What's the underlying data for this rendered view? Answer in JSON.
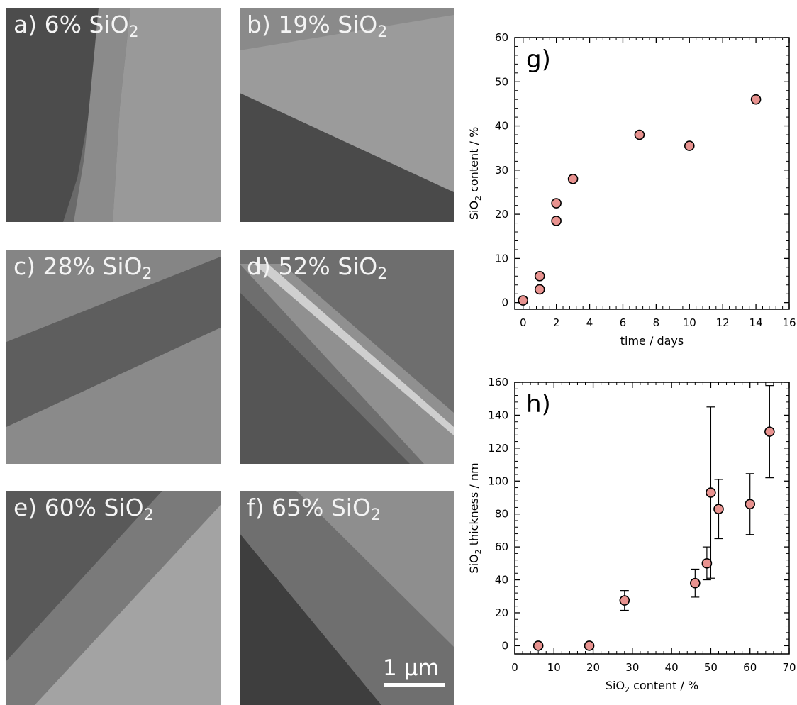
{
  "panels": [
    {
      "letter": "a)",
      "percent": "6%",
      "compound": "SiO",
      "sub": "2"
    },
    {
      "letter": "b)",
      "percent": "19%",
      "compound": "SiO",
      "sub": "2"
    },
    {
      "letter": "c)",
      "percent": "28%",
      "compound": "SiO",
      "sub": "2"
    },
    {
      "letter": "d)",
      "percent": "52%",
      "compound": "SiO",
      "sub": "2"
    },
    {
      "letter": "e)",
      "percent": "60%",
      "compound": "SiO",
      "sub": "2"
    },
    {
      "letter": "f)",
      "percent": "65%",
      "compound": "SiO",
      "sub": "2"
    }
  ],
  "scalebar": {
    "label": "1 µm"
  },
  "chart_data": [
    {
      "type": "scatter",
      "panel_label": "g)",
      "xlabel": "time / days",
      "ylabel_main": "SiO",
      "ylabel_sub": "2",
      "ylabel_rest": " content / %",
      "xlim": [
        -0.5,
        16
      ],
      "ylim": [
        -1.5,
        60
      ],
      "xticks": [
        0,
        2,
        4,
        6,
        8,
        10,
        12,
        14,
        16
      ],
      "yticks": [
        0,
        10,
        20,
        30,
        40,
        50,
        60
      ],
      "points": [
        {
          "x": 0,
          "y": 0.5
        },
        {
          "x": 1,
          "y": 3
        },
        {
          "x": 1,
          "y": 6
        },
        {
          "x": 2,
          "y": 18.5
        },
        {
          "x": 2,
          "y": 22.5
        },
        {
          "x": 3,
          "y": 28
        },
        {
          "x": 7,
          "y": 38
        },
        {
          "x": 10,
          "y": 35.5
        },
        {
          "x": 14,
          "y": 46
        }
      ],
      "marker_fill": "#e8928f"
    },
    {
      "type": "scatter",
      "panel_label": "h)",
      "xlabel_main": "SiO",
      "xlabel_sub": "2",
      "xlabel_rest": " content / %",
      "ylabel_main": "SiO",
      "ylabel_sub": "2",
      "ylabel_rest": " thickness / nm",
      "xlim": [
        0,
        70
      ],
      "ylim": [
        -5,
        160
      ],
      "xticks": [
        0,
        10,
        20,
        30,
        40,
        50,
        60,
        70
      ],
      "yticks": [
        0,
        20,
        40,
        60,
        80,
        100,
        120,
        140,
        160
      ],
      "points": [
        {
          "x": 6,
          "y": 0
        },
        {
          "x": 19,
          "y": 0
        },
        {
          "x": 28,
          "y": 27.5,
          "ylo": 21.5,
          "yhi": 33.5
        },
        {
          "x": 46,
          "y": 38,
          "ylo": 29.5,
          "yhi": 46.5
        },
        {
          "x": 49,
          "y": 50,
          "ylo": 40,
          "yhi": 60
        },
        {
          "x": 50,
          "y": 93,
          "ylo": 41,
          "yhi": 145
        },
        {
          "x": 52,
          "y": 83,
          "ylo": 65,
          "yhi": 101
        },
        {
          "x": 60,
          "y": 86,
          "ylo": 67.5,
          "yhi": 104.5
        },
        {
          "x": 65,
          "y": 130,
          "ylo": 102,
          "yhi": 158
        }
      ],
      "marker_fill": "#e8928f"
    }
  ]
}
